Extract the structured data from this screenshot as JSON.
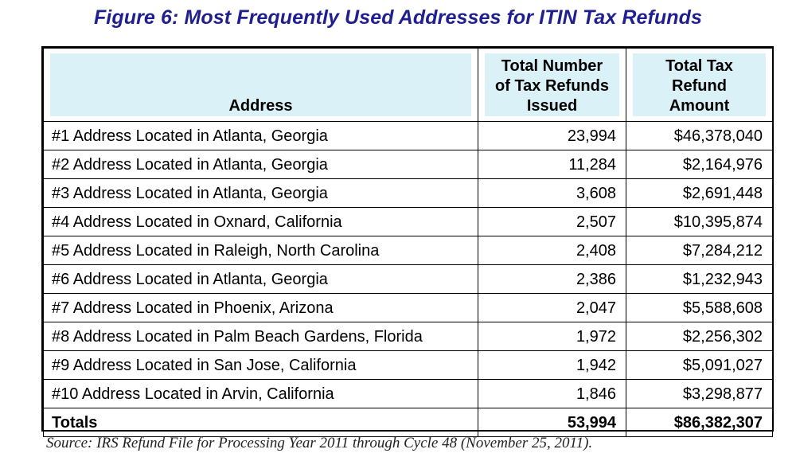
{
  "title": "Figure 6:  Most Frequently Used Addresses for ITIN Tax Refunds",
  "table": {
    "headers": {
      "address": "Address",
      "count": "Total Number of Tax Refunds Issued",
      "count_lines": [
        "Total Number",
        "of Tax Refunds",
        "Issued"
      ],
      "amount": "Total Tax Refund Amount",
      "amount_lines": [
        "Total Tax",
        "Refund",
        "Amount"
      ]
    },
    "rows": [
      {
        "address": "#1 Address Located in Atlanta, Georgia",
        "count": "23,994",
        "amount": "$46,378,040"
      },
      {
        "address": "#2 Address Located in Atlanta, Georgia",
        "count": "11,284",
        "amount": "$2,164,976"
      },
      {
        "address": "#3 Address Located in Atlanta, Georgia",
        "count": "3,608",
        "amount": "$2,691,448"
      },
      {
        "address": "#4 Address Located in Oxnard, California",
        "count": "2,507",
        "amount": "$10,395,874"
      },
      {
        "address": "#5 Address Located in Raleigh, North Carolina",
        "count": "2,408",
        "amount": "$7,284,212"
      },
      {
        "address": "#6 Address Located in Atlanta, Georgia",
        "count": "2,386",
        "amount": "$1,232,943"
      },
      {
        "address": "#7 Address Located in Phoenix, Arizona",
        "count": "2,047",
        "amount": "$5,588,608"
      },
      {
        "address": "#8 Address Located in Palm Beach Gardens, Florida",
        "count": "1,972",
        "amount": "$2,256,302"
      },
      {
        "address": "#9 Address Located in San Jose, California",
        "count": "1,942",
        "amount": "$5,091,027"
      },
      {
        "address": "#10 Address Located in Arvin, California",
        "count": "1,846",
        "amount": "$3,298,877"
      }
    ],
    "totals": {
      "label": "Totals",
      "count": "53,994",
      "amount": "$86,382,307"
    }
  },
  "source": "Source:  IRS Refund File for Processing Year 2011 through Cycle 48 (November 25, 2011).",
  "colors": {
    "title": "#1f1f8f",
    "header_shade": "#d9f1f7",
    "border": "#000000"
  }
}
